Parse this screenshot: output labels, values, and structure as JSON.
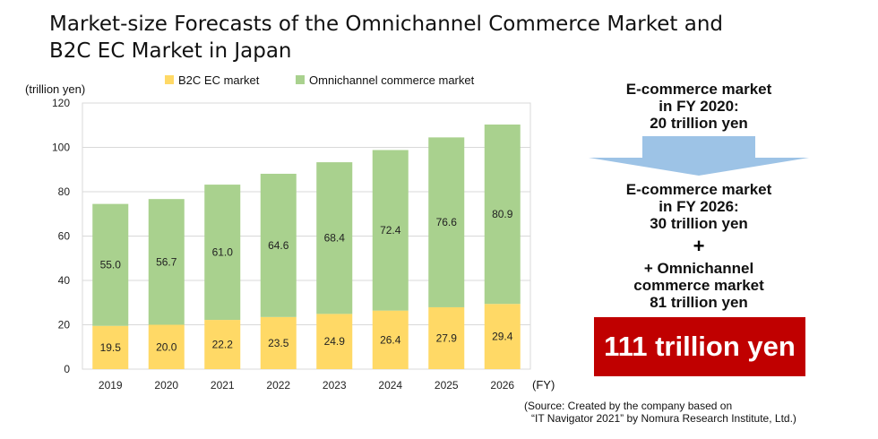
{
  "title_line1": "Market-size Forecasts of the Omnichannel Commerce Market and",
  "title_line2": "B2C EC Market in Japan",
  "chart_data": {
    "type": "bar",
    "stacked": true,
    "unit_label": "(trillion yen)",
    "x_unit_label": "(FY)",
    "categories": [
      "2019",
      "2020",
      "2021",
      "2022",
      "2023",
      "2024",
      "2025",
      "2026"
    ],
    "series": [
      {
        "name": "B2C EC market",
        "color": "#ffd966",
        "values": [
          19.5,
          20.0,
          22.2,
          23.5,
          24.9,
          26.4,
          27.9,
          29.4
        ],
        "labels": [
          "19.5",
          "20.0",
          "22.2",
          "23.5",
          "24.9",
          "26.4",
          "27.9",
          "29.4"
        ]
      },
      {
        "name": "Omnichannel commerce market",
        "color": "#a9d18e",
        "values": [
          55.0,
          56.7,
          61.0,
          64.6,
          68.4,
          72.4,
          76.6,
          80.9
        ],
        "labels": [
          "55.0",
          "56.7",
          "61.0",
          "64.6",
          "68.4",
          "72.4",
          "76.6",
          "80.9"
        ]
      }
    ],
    "ylim": [
      0,
      120
    ],
    "yticks": [
      "0",
      "20",
      "40",
      "60",
      "80",
      "100",
      "120"
    ],
    "grid": true,
    "legend_position": "top"
  },
  "panel": {
    "top_lines": [
      "E-commerce market",
      "in FY 2020:",
      "20 trillion yen"
    ],
    "mid_lines": [
      "E-commerce market",
      "in FY 2026:",
      "30 trillion yen"
    ],
    "plus": "+",
    "bottom_lines": [
      "+ Omnichannel",
      "commerce market",
      "81 trillion yen"
    ],
    "result": "111 trillion yen",
    "arrow_color": "#9dc3e6",
    "result_color": "#c00000"
  },
  "source_line1": "(Source: Created by the company based on",
  "source_line2": "“IT Navigator 2021” by Nomura Research Institute, Ltd.)"
}
